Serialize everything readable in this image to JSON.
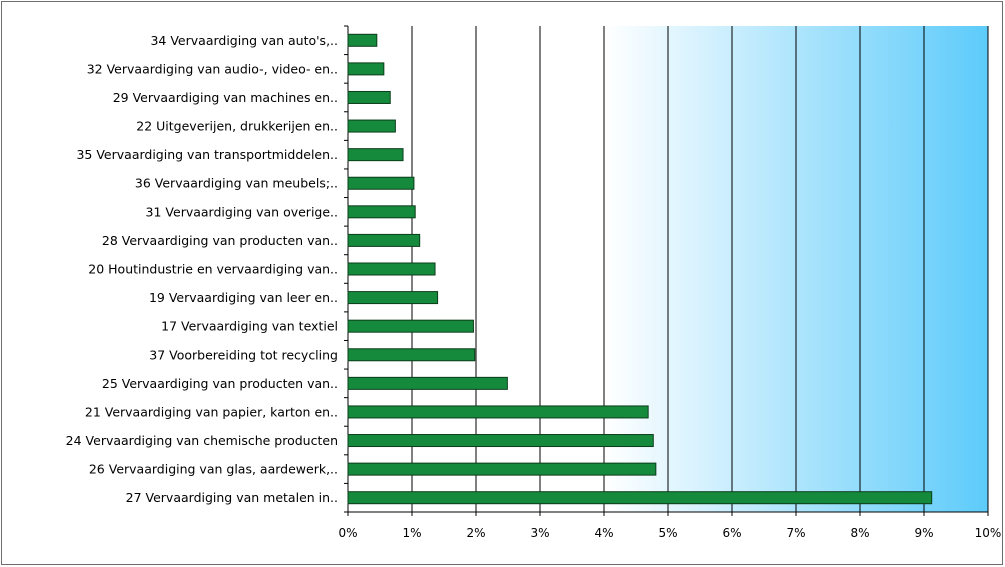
{
  "chart_data": {
    "type": "bar",
    "orientation": "horizontal",
    "categories": [
      "34 Vervaardiging van auto's,..",
      "32 Vervaardiging van audio-, video- en..",
      "29 Vervaardiging van machines en..",
      "22 Uitgeverijen, drukkerijen en..",
      "35 Vervaardiging van transportmiddelen..",
      "36 Vervaardiging van meubels;..",
      "31 Vervaardiging van overige..",
      "28 Vervaardiging van producten van..",
      "20 Houtindustrie en vervaardiging van..",
      "19 Vervaardiging van leer en..",
      "17 Vervaardiging van textiel",
      "37 Voorbereiding tot recycling",
      "25 Vervaardiging van producten van..",
      "21 Vervaardiging van papier, karton en..",
      "24 Vervaardiging van chemische producten",
      "26 Vervaardiging van glas, aardewerk,..",
      "27 Vervaardiging van metalen in.."
    ],
    "values": [
      0.45,
      0.56,
      0.66,
      0.74,
      0.86,
      1.03,
      1.05,
      1.12,
      1.36,
      1.4,
      1.96,
      1.98,
      2.49,
      4.69,
      4.77,
      4.81,
      9.12
    ],
    "xlim": [
      0,
      10
    ],
    "xticks": [
      "0%",
      "1%",
      "2%",
      "3%",
      "4%",
      "5%",
      "6%",
      "7%",
      "8%",
      "9%",
      "10%"
    ],
    "title": "",
    "xlabel": "",
    "ylabel": "",
    "grid": "vertical",
    "legend": "none",
    "colors": {
      "bar_fill": "#168a3c",
      "bar_stroke": "#0b3d1a",
      "plot_edge": "#ffffff",
      "plot_center": "#5dcbfa",
      "gridline": "#000000",
      "frame": "#6d6d6d"
    }
  }
}
